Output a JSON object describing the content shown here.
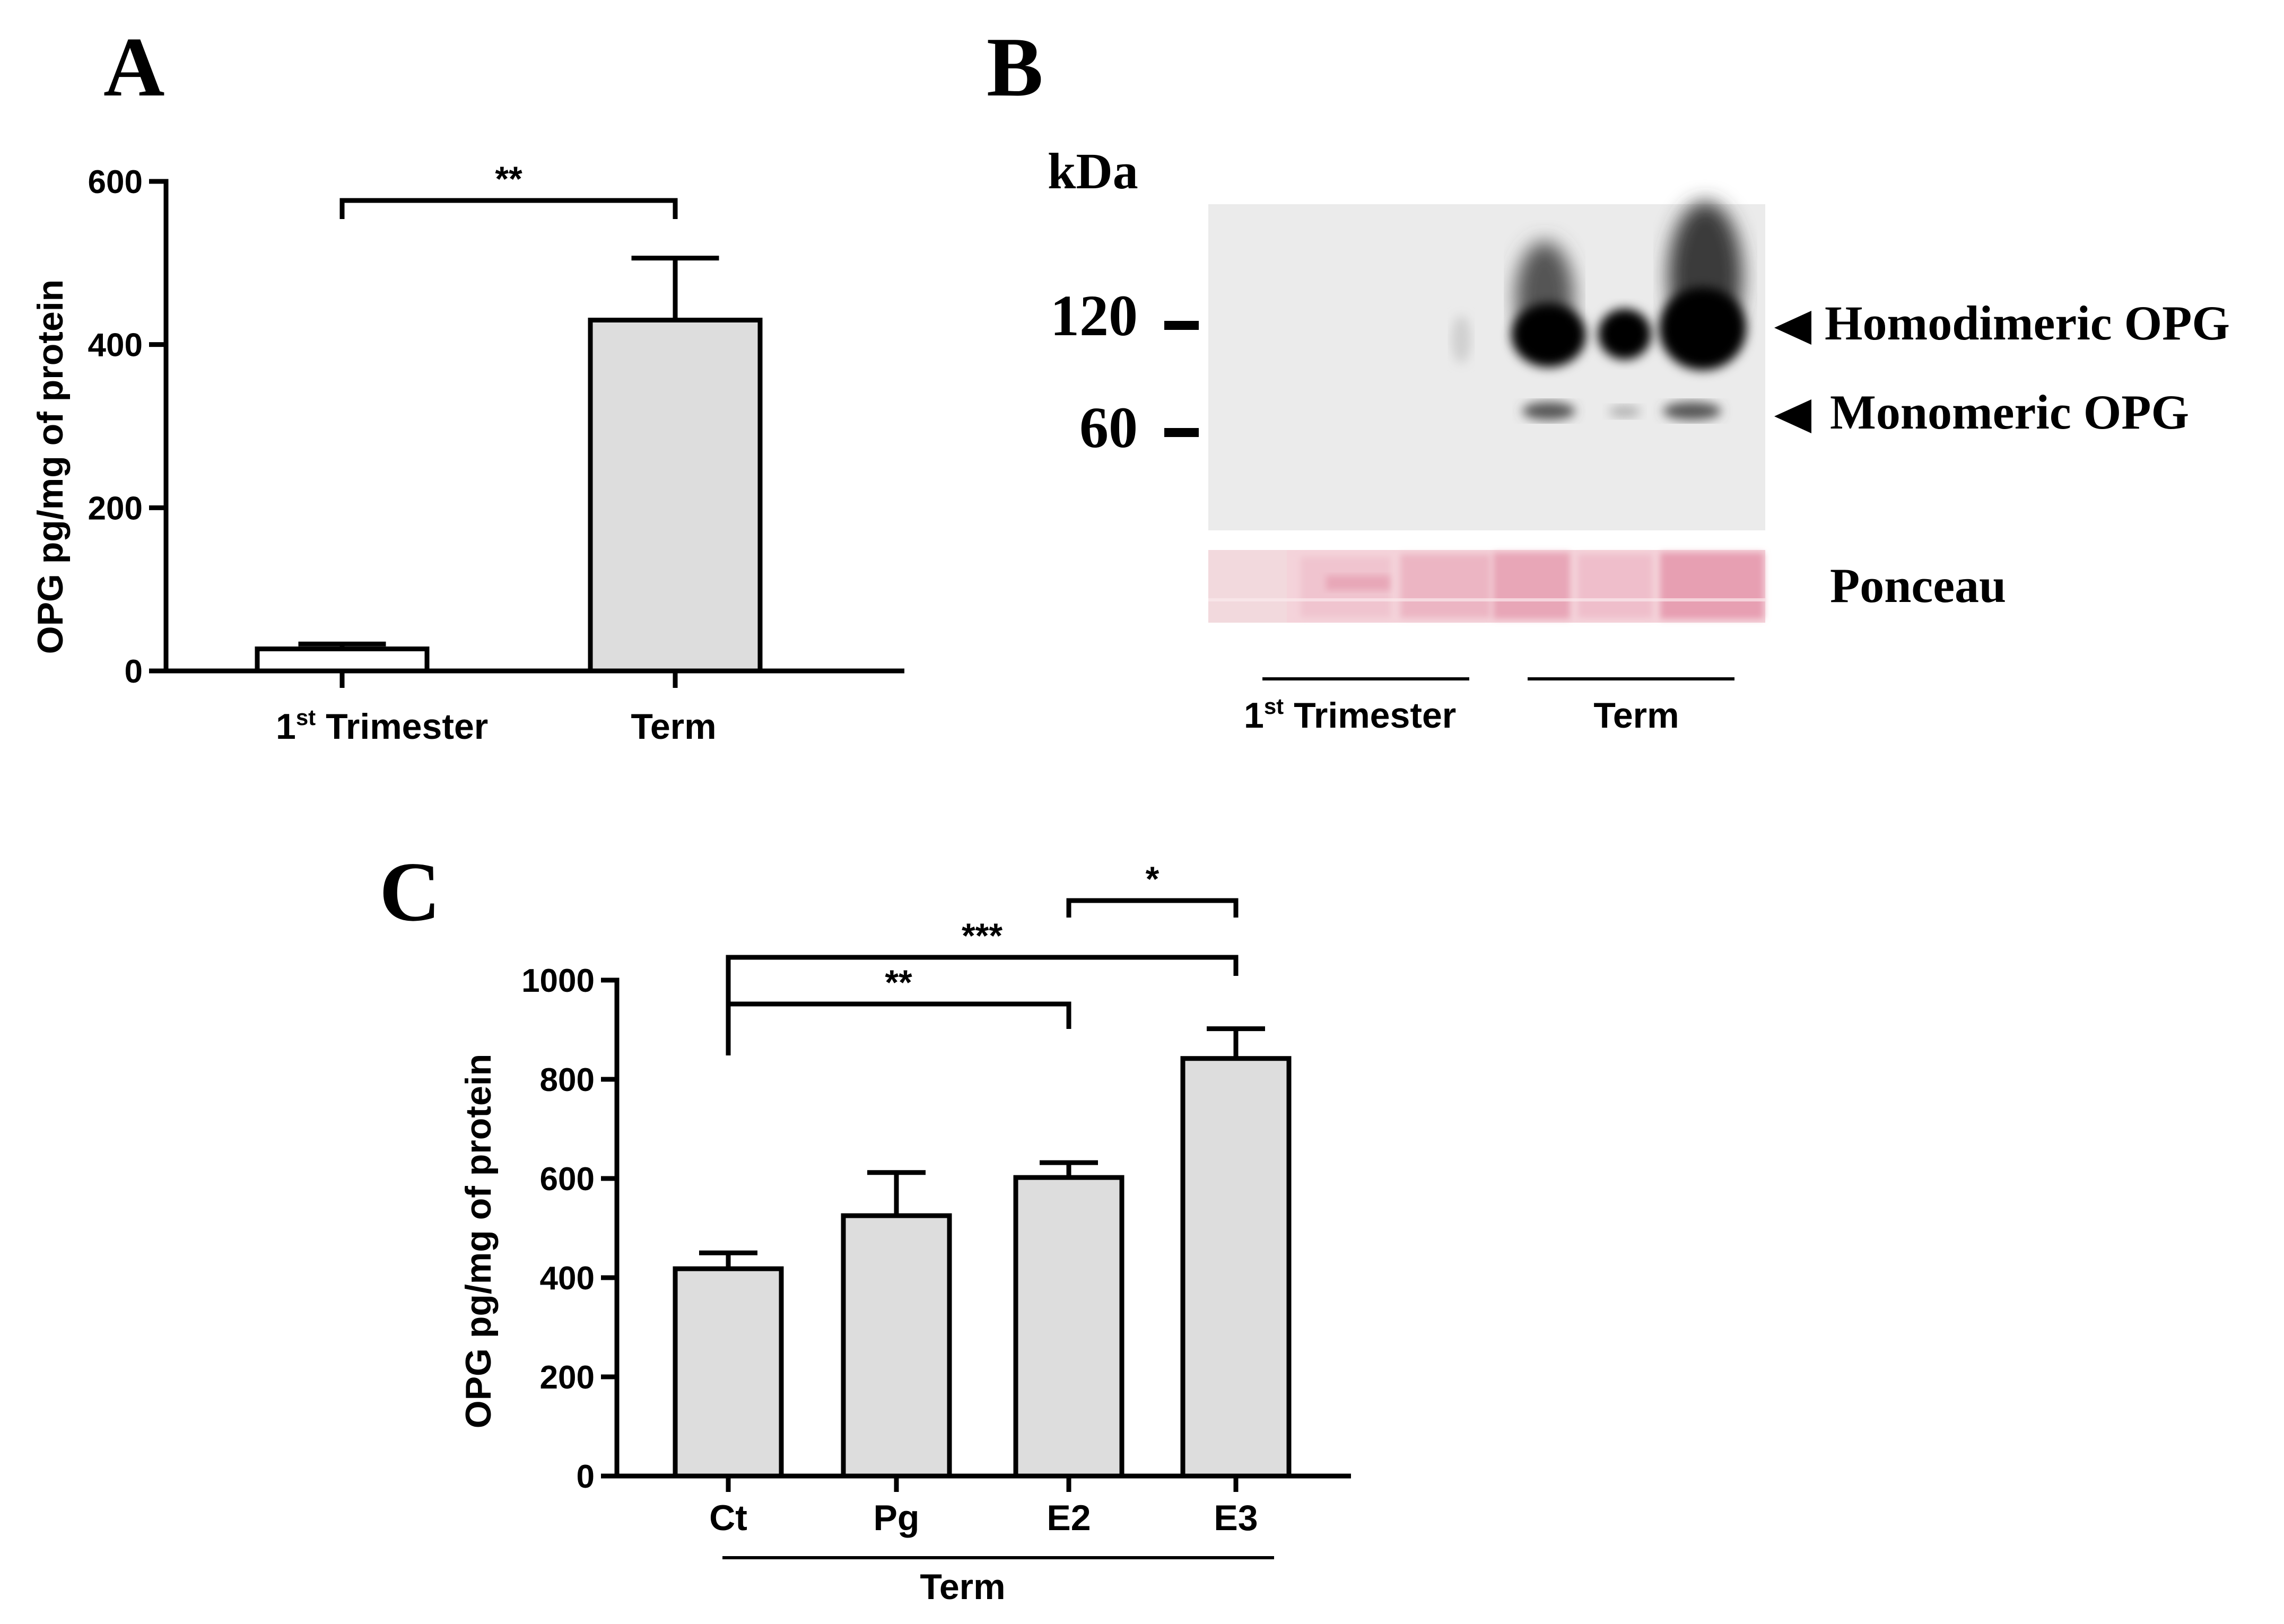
{
  "colors": {
    "bar_fill": "#dddddd",
    "bar_fill_first": "#ffffff",
    "stroke": "#000000",
    "blot_bg": "#ebebeb",
    "band": "#000000",
    "ponceau_base": "#f4d3da",
    "ponceau_strong": "#e9a6b6"
  },
  "panels": {
    "a": {
      "letter": "A"
    },
    "b": {
      "letter": "B",
      "kda_label": "kDa",
      "markers": [
        {
          "label": "120"
        },
        {
          "label": "60"
        }
      ],
      "band_labels": {
        "homodimeric": "Homodimeric OPG",
        "monomeric": "Monomeric OPG"
      },
      "ponceau_label": "Ponceau",
      "groups": [
        {
          "label_main": "1",
          "label_sup": "st",
          "label_rest": " Trimester",
          "lanes": 3
        },
        {
          "label_main": "Term",
          "label_sup": "",
          "label_rest": "",
          "lanes": 3
        }
      ]
    },
    "c": {
      "letter": "C",
      "group_label": "Term"
    }
  },
  "chart_data": [
    {
      "panel": "A",
      "type": "bar",
      "categories": [
        "1st Trimester",
        "Term"
      ],
      "category_display": [
        {
          "main": "1",
          "sup": "st",
          "rest": " Trimester"
        },
        {
          "main": "Term",
          "sup": "",
          "rest": ""
        }
      ],
      "values": [
        27,
        430
      ],
      "errors": [
        6,
        76
      ],
      "ylabel": "OPG pg/mg of protein",
      "ylim": [
        0,
        600
      ],
      "yticks": [
        0,
        200,
        400,
        600
      ],
      "significance": [
        {
          "from": 0,
          "to": 1,
          "label": "**"
        }
      ]
    },
    {
      "panel": "C",
      "type": "bar",
      "categories": [
        "Ct",
        "Pg",
        "E2",
        "E3"
      ],
      "values": [
        418,
        525,
        602,
        842
      ],
      "errors": [
        32,
        87,
        30,
        60
      ],
      "ylabel": "OPG pg/mg of protein",
      "xgroup_label": "Term",
      "ylim": [
        0,
        1000
      ],
      "yticks": [
        0,
        200,
        400,
        600,
        800,
        1000
      ],
      "significance": [
        {
          "from": 2,
          "to": 3,
          "label": "*"
        },
        {
          "from": 0,
          "to": 3,
          "label": "***"
        },
        {
          "from": 0,
          "to": 2,
          "label": "**"
        }
      ]
    }
  ]
}
